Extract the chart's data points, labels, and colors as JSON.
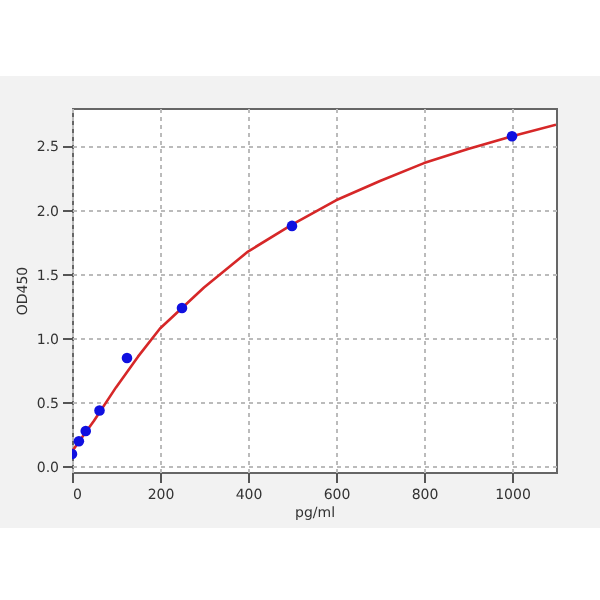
{
  "chart_data": {
    "type": "scatter",
    "xlabel": "pg/ml",
    "ylabel": "OD450",
    "xlim": [
      0,
      1100
    ],
    "ylim": [
      -0.04,
      2.8
    ],
    "xticks": [
      0,
      200,
      400,
      600,
      800,
      1000
    ],
    "yticks": [
      {
        "value": 0,
        "label": "0.0"
      },
      0.5,
      {
        "value": 1,
        "label": "1.0"
      },
      1.5,
      {
        "value": 2,
        "label": "2.0"
      },
      2.5
    ],
    "grid": true,
    "marker": "circle",
    "series": [
      {
        "type": "line",
        "marker": "none",
        "color": "#d62728",
        "x": [
          0,
          25,
          50,
          100,
          150,
          200,
          300,
          400,
          500,
          600,
          700,
          800,
          900,
          1000,
          1100
        ],
        "values": [
          0.12,
          0.24,
          0.36,
          0.62,
          0.86,
          1.08,
          1.4,
          1.68,
          1.89,
          2.08,
          2.23,
          2.37,
          2.48,
          2.58,
          2.67
        ]
      },
      {
        "color": "#1010e0",
        "x": [
          0,
          15.6,
          31.25,
          62.5,
          125,
          250,
          500,
          1000
        ],
        "values": [
          0.1,
          0.2,
          0.28,
          0.44,
          0.85,
          1.24,
          1.88,
          2.58
        ]
      }
    ]
  }
}
